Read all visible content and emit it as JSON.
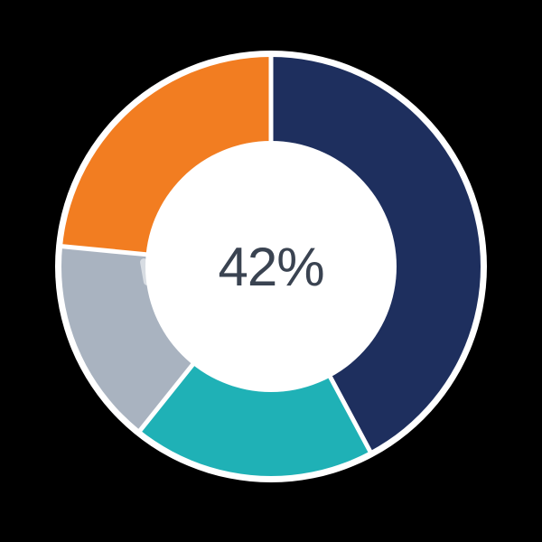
{
  "page": {
    "background_color": "#000000"
  },
  "chart_data": {
    "type": "pie",
    "donut": true,
    "title": "",
    "center_label": "42%",
    "center_label_color": "#3A4351",
    "legend_position": "none",
    "direction": "clockwise",
    "start_at": "top",
    "segments": [
      {
        "name": "navy",
        "value": 42,
        "color": "#1E2F5E"
      },
      {
        "name": "teal",
        "value": 19,
        "color": "#1FB1B6"
      },
      {
        "name": "gray",
        "value": 16,
        "color": "#A9B3C0"
      },
      {
        "name": "orange",
        "value": 23,
        "color": "#F27D21"
      }
    ],
    "boundary_angles_deg": [
      0,
      151.8,
      218.6,
      275.5,
      360
    ],
    "slice_gap_color": "#FFFFFF",
    "ring_outline_color": "#FFFFFF",
    "hole_color": "#FFFFFF"
  }
}
